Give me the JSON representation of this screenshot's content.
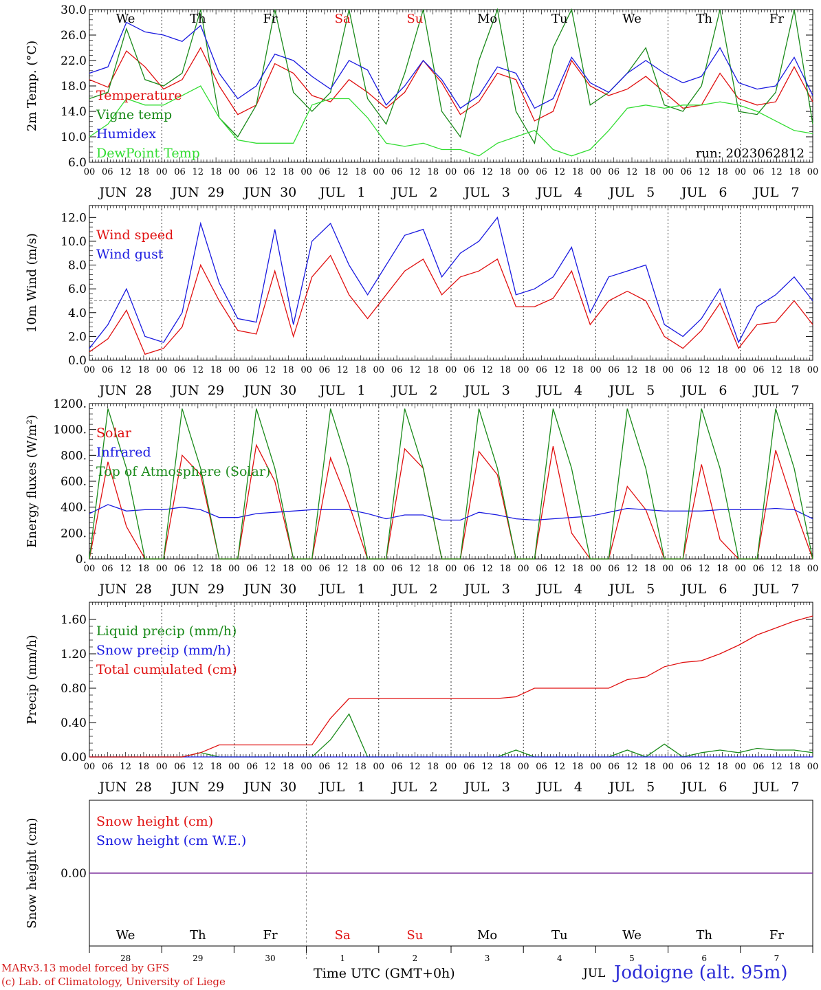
{
  "colors": {
    "red": "#e01010",
    "green": "#1a8a1a",
    "blue": "#1a1ae0",
    "lightgreen": "#33dd33",
    "purple": "#7a2a9a",
    "grey": "#888888"
  },
  "day_abbrev": [
    "We",
    "Th",
    "Fr",
    "Sa",
    "Su",
    "Mo",
    "Tu",
    "We",
    "Th",
    "Fr"
  ],
  "weekend_flags": [
    false,
    false,
    false,
    true,
    true,
    false,
    false,
    false,
    false,
    false
  ],
  "day_labels": [
    "JUN  28",
    "JUN  29",
    "JUN  30",
    "JUL   1",
    "JUL   2",
    "JUL   3",
    "JUL   4",
    "JUL   5",
    "JUL   6",
    "JUL   7"
  ],
  "hour_ticks": [
    "00",
    "06",
    "12",
    "18"
  ],
  "end_hour": "00",
  "day_numbers": [
    "28",
    "29",
    "30",
    "1",
    "2",
    "3",
    "4",
    "5",
    "6",
    "7"
  ],
  "chart_data": [
    {
      "type": "line",
      "ylabel": "2m Temp. (°C)",
      "ylim": [
        6.0,
        30.0
      ],
      "yticks": [
        "6.0",
        "10.0",
        "14.0",
        "18.0",
        "22.0",
        "26.0",
        "30.0"
      ],
      "run_label": "run: 2023062812",
      "series": [
        {
          "name": "Temperature",
          "color": "red",
          "values": [
            19.0,
            17.8,
            23.5,
            21.0,
            17.5,
            19.0,
            24.0,
            18.0,
            13.5,
            15.0,
            21.5,
            20.0,
            16.5,
            15.5,
            19.0,
            17.0,
            14.5,
            17.0,
            22.0,
            18.5,
            13.5,
            15.5,
            20.0,
            19.0,
            12.5,
            14.0,
            22.0,
            18.0,
            16.5,
            17.5,
            19.5,
            17.0,
            14.5,
            15.0,
            20.0,
            16.0,
            15.0,
            15.5,
            21.0,
            15.5
          ]
        },
        {
          "name": "Vigne temp",
          "color": "green",
          "values": [
            16.0,
            17.0,
            27.0,
            19.0,
            18.0,
            20.0,
            30.0,
            13.0,
            10.0,
            15.0,
            30.0,
            17.0,
            14.0,
            17.0,
            30.0,
            16.0,
            12.0,
            20.0,
            30.0,
            14.0,
            10.0,
            22.0,
            30.0,
            14.0,
            9.0,
            24.0,
            30.0,
            15.0,
            17.0,
            20.0,
            24.0,
            15.0,
            14.0,
            18.0,
            30.0,
            14.0,
            13.5,
            17.0,
            30.0,
            12.0
          ]
        },
        {
          "name": "Humidex",
          "color": "blue",
          "values": [
            20.0,
            21.0,
            28.0,
            26.5,
            26.0,
            25.0,
            27.5,
            20.0,
            16.0,
            18.0,
            23.0,
            22.0,
            19.5,
            17.5,
            22.0,
            20.5,
            15.0,
            18.0,
            22.0,
            19.0,
            14.5,
            16.5,
            21.0,
            20.0,
            14.5,
            16.0,
            22.5,
            18.5,
            17.0,
            20.0,
            22.0,
            20.0,
            18.5,
            19.5,
            24.0,
            18.5,
            17.5,
            18.0,
            22.5,
            16.5
          ]
        },
        {
          "name": "DewPoint Temp",
          "color": "lightgreen",
          "values": [
            10.0,
            12.0,
            16.0,
            15.0,
            15.0,
            16.5,
            18.0,
            13.0,
            9.5,
            9.0,
            9.0,
            9.0,
            15.0,
            16.0,
            16.0,
            13.0,
            9.0,
            8.5,
            9.0,
            8.0,
            8.0,
            7.0,
            9.0,
            10.0,
            11.0,
            8.0,
            7.0,
            8.0,
            11.0,
            14.5,
            15.0,
            14.5,
            15.0,
            15.0,
            15.5,
            15.0,
            14.0,
            12.5,
            11.0,
            10.5
          ]
        }
      ]
    },
    {
      "type": "line",
      "ylabel": "10m Wind (m/s)",
      "ylim": [
        0.0,
        13.0
      ],
      "yticks": [
        "0.0",
        "2.0",
        "4.0",
        "6.0",
        "8.0",
        "10.0",
        "12.0"
      ],
      "ref_line": 5.0,
      "series": [
        {
          "name": "Wind speed",
          "color": "red",
          "values": [
            0.7,
            1.8,
            4.2,
            0.5,
            1.0,
            2.8,
            8.0,
            5.0,
            2.5,
            2.2,
            7.5,
            2.0,
            7.0,
            8.8,
            5.5,
            3.5,
            5.5,
            7.5,
            8.5,
            5.5,
            7.0,
            7.5,
            8.5,
            4.5,
            4.5,
            5.2,
            7.5,
            3.0,
            5.0,
            5.8,
            5.0,
            2.0,
            1.0,
            2.5,
            4.8,
            1.0,
            3.0,
            3.2,
            5.0,
            3.0
          ]
        },
        {
          "name": "Wind gust",
          "color": "blue",
          "values": [
            1.0,
            3.0,
            6.0,
            2.0,
            1.5,
            4.0,
            11.5,
            6.5,
            3.5,
            3.2,
            11.0,
            3.0,
            10.0,
            11.5,
            8.0,
            5.5,
            8.0,
            10.5,
            11.0,
            7.0,
            9.0,
            10.0,
            12.0,
            5.5,
            6.0,
            7.0,
            9.5,
            4.0,
            7.0,
            7.5,
            8.0,
            3.0,
            2.0,
            3.5,
            6.0,
            1.5,
            4.5,
            5.5,
            7.0,
            5.0
          ]
        }
      ]
    },
    {
      "type": "line",
      "ylabel": "Energy fluxes (W/m²)",
      "ylim": [
        0,
        1200
      ],
      "yticks": [
        "0.",
        "200.",
        "400.",
        "600.",
        "800.",
        "1000.",
        "1200."
      ],
      "series": [
        {
          "name": "Solar",
          "color": "red",
          "values": [
            0,
            750,
            250,
            0,
            0,
            800,
            650,
            0,
            0,
            880,
            600,
            0,
            0,
            780,
            420,
            0,
            0,
            850,
            700,
            0,
            0,
            830,
            650,
            0,
            0,
            870,
            200,
            0,
            0,
            560,
            380,
            0,
            0,
            730,
            150,
            0,
            0,
            840,
            400,
            0
          ]
        },
        {
          "name": "Infrared",
          "color": "blue",
          "values": [
            350,
            420,
            370,
            380,
            380,
            400,
            380,
            320,
            320,
            350,
            360,
            370,
            380,
            380,
            380,
            350,
            310,
            340,
            340,
            300,
            300,
            360,
            340,
            310,
            300,
            310,
            320,
            330,
            360,
            390,
            380,
            370,
            370,
            370,
            380,
            380,
            380,
            390,
            380,
            310
          ]
        },
        {
          "name": "Top of Atmosphere (Solar)",
          "color": "green",
          "values": [
            0,
            1160,
            700,
            0,
            0,
            1160,
            700,
            0,
            0,
            1160,
            700,
            0,
            0,
            1160,
            700,
            0,
            0,
            1160,
            700,
            0,
            0,
            1160,
            700,
            0,
            0,
            1160,
            700,
            0,
            0,
            1160,
            700,
            0,
            0,
            1160,
            700,
            0,
            0,
            1160,
            700,
            0
          ]
        }
      ]
    },
    {
      "type": "line",
      "ylabel": "Precip (mm/h)",
      "ylim": [
        0.0,
        1.8
      ],
      "yticks": [
        "0.00",
        "0.40",
        "0.80",
        "1.20",
        "1.60"
      ],
      "series": [
        {
          "name": "Liquid precip (mm/h)",
          "color": "green",
          "values": [
            0,
            0,
            0,
            0,
            0,
            0,
            0.05,
            0,
            0,
            0,
            0,
            0,
            0,
            0.2,
            0.5,
            0,
            0,
            0,
            0,
            0,
            0,
            0,
            0,
            0.08,
            0,
            0,
            0,
            0,
            0,
            0.08,
            0,
            0.15,
            0,
            0.05,
            0.08,
            0.05,
            0.1,
            0.08,
            0.08,
            0.05
          ]
        },
        {
          "name": "Snow precip (mm/h)",
          "color": "blue",
          "values": [
            0,
            0,
            0,
            0,
            0,
            0,
            0,
            0,
            0,
            0,
            0,
            0,
            0,
            0,
            0,
            0,
            0,
            0,
            0,
            0,
            0,
            0,
            0,
            0,
            0,
            0,
            0,
            0,
            0,
            0,
            0,
            0,
            0,
            0,
            0,
            0,
            0,
            0,
            0,
            0
          ]
        },
        {
          "name": "Total cumulated (cm)",
          "color": "red",
          "values": [
            0,
            0,
            0,
            0,
            0,
            0,
            0.05,
            0.14,
            0.14,
            0.14,
            0.14,
            0.14,
            0.14,
            0.45,
            0.68,
            0.68,
            0.68,
            0.68,
            0.68,
            0.68,
            0.68,
            0.68,
            0.68,
            0.7,
            0.8,
            0.8,
            0.8,
            0.8,
            0.8,
            0.9,
            0.93,
            1.05,
            1.1,
            1.12,
            1.2,
            1.3,
            1.42,
            1.5,
            1.58,
            1.64
          ]
        }
      ]
    },
    {
      "type": "line",
      "ylabel": "Snow height (cm)",
      "ylim": [
        -1,
        1
      ],
      "yticks": [
        "0.00"
      ],
      "series": [
        {
          "name": "Snow height (cm)",
          "color": "red",
          "values": [
            0,
            0
          ]
        },
        {
          "name": "Snow height (cm W.E.)",
          "color": "blue",
          "values": [
            0,
            0
          ]
        }
      ]
    }
  ],
  "footer": {
    "model_line1": "MARv3.13 model forced by GFS",
    "model_line2": "(c) Lab. of Climatology, University of Liege",
    "xlabel": "Time UTC (GMT+0h)",
    "month": "JUL",
    "location": "Jodoigne (alt. 95m)"
  }
}
